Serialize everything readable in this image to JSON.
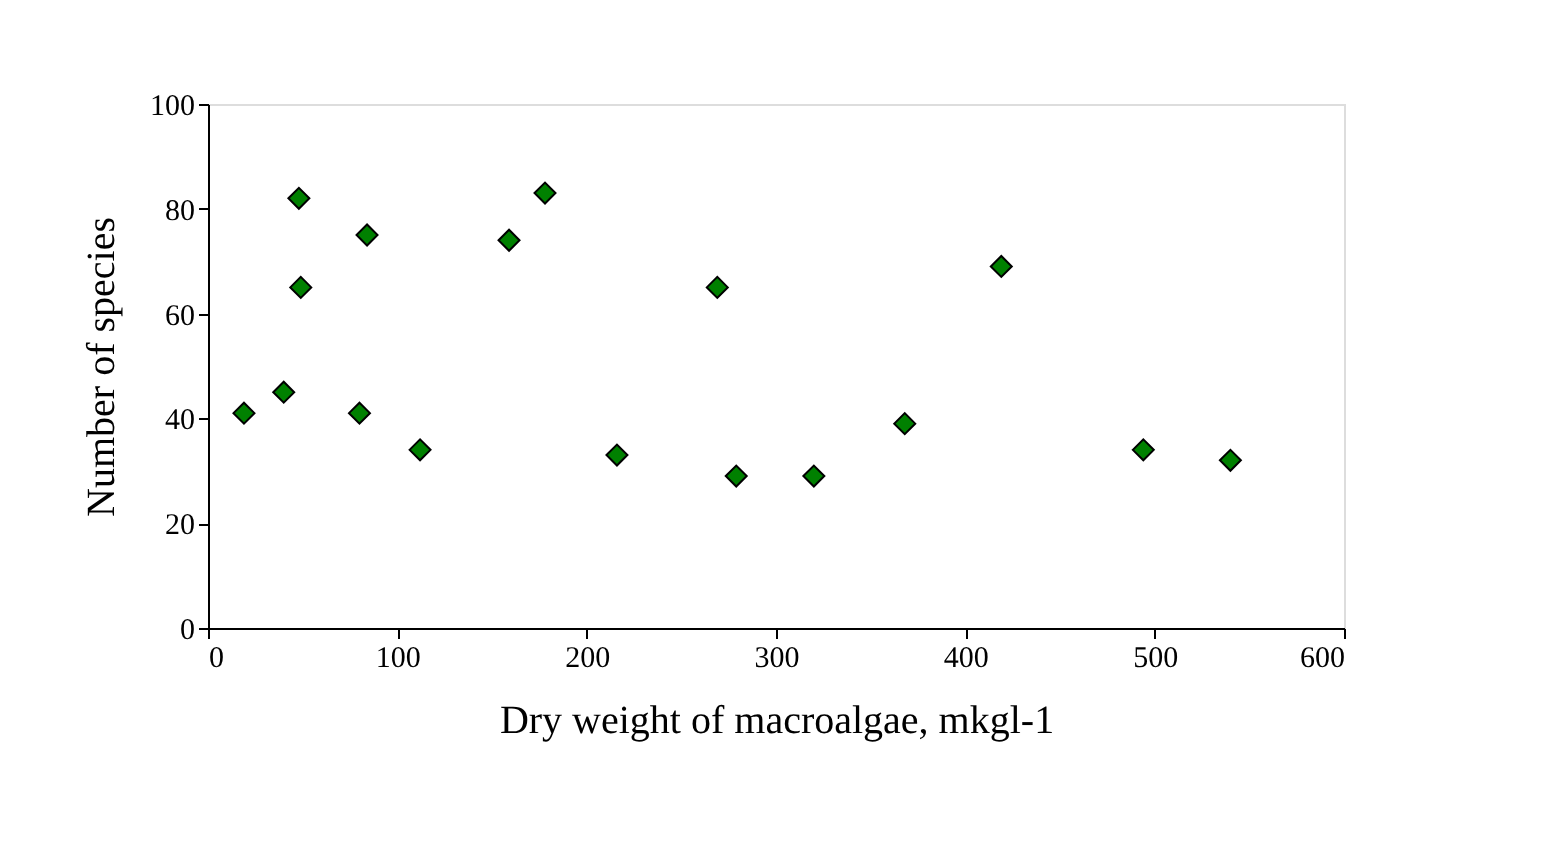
{
  "chart_data": {
    "type": "scatter",
    "xlabel": "Dry weight of macroalgae, mkgl-1",
    "ylabel": "Number of species",
    "x": [
      19,
      40,
      48,
      49,
      84,
      80,
      112,
      159,
      178,
      216,
      269,
      279,
      320,
      368,
      419,
      494,
      540
    ],
    "series": [
      {
        "color": "#008000",
        "values": [
          41,
          45,
          82,
          65,
          75,
          41,
          34,
          74,
          83,
          33,
          65,
          29,
          29,
          39,
          69,
          34,
          32
        ]
      }
    ],
    "xlim": [
      0,
      600
    ],
    "xticks": [
      0,
      100,
      200,
      300,
      400,
      500,
      600
    ],
    "ylim": [
      0,
      100
    ],
    "yticks": [
      0,
      20,
      40,
      60,
      80,
      100
    ],
    "grid": false,
    "legend": false,
    "marker": "diamond"
  }
}
